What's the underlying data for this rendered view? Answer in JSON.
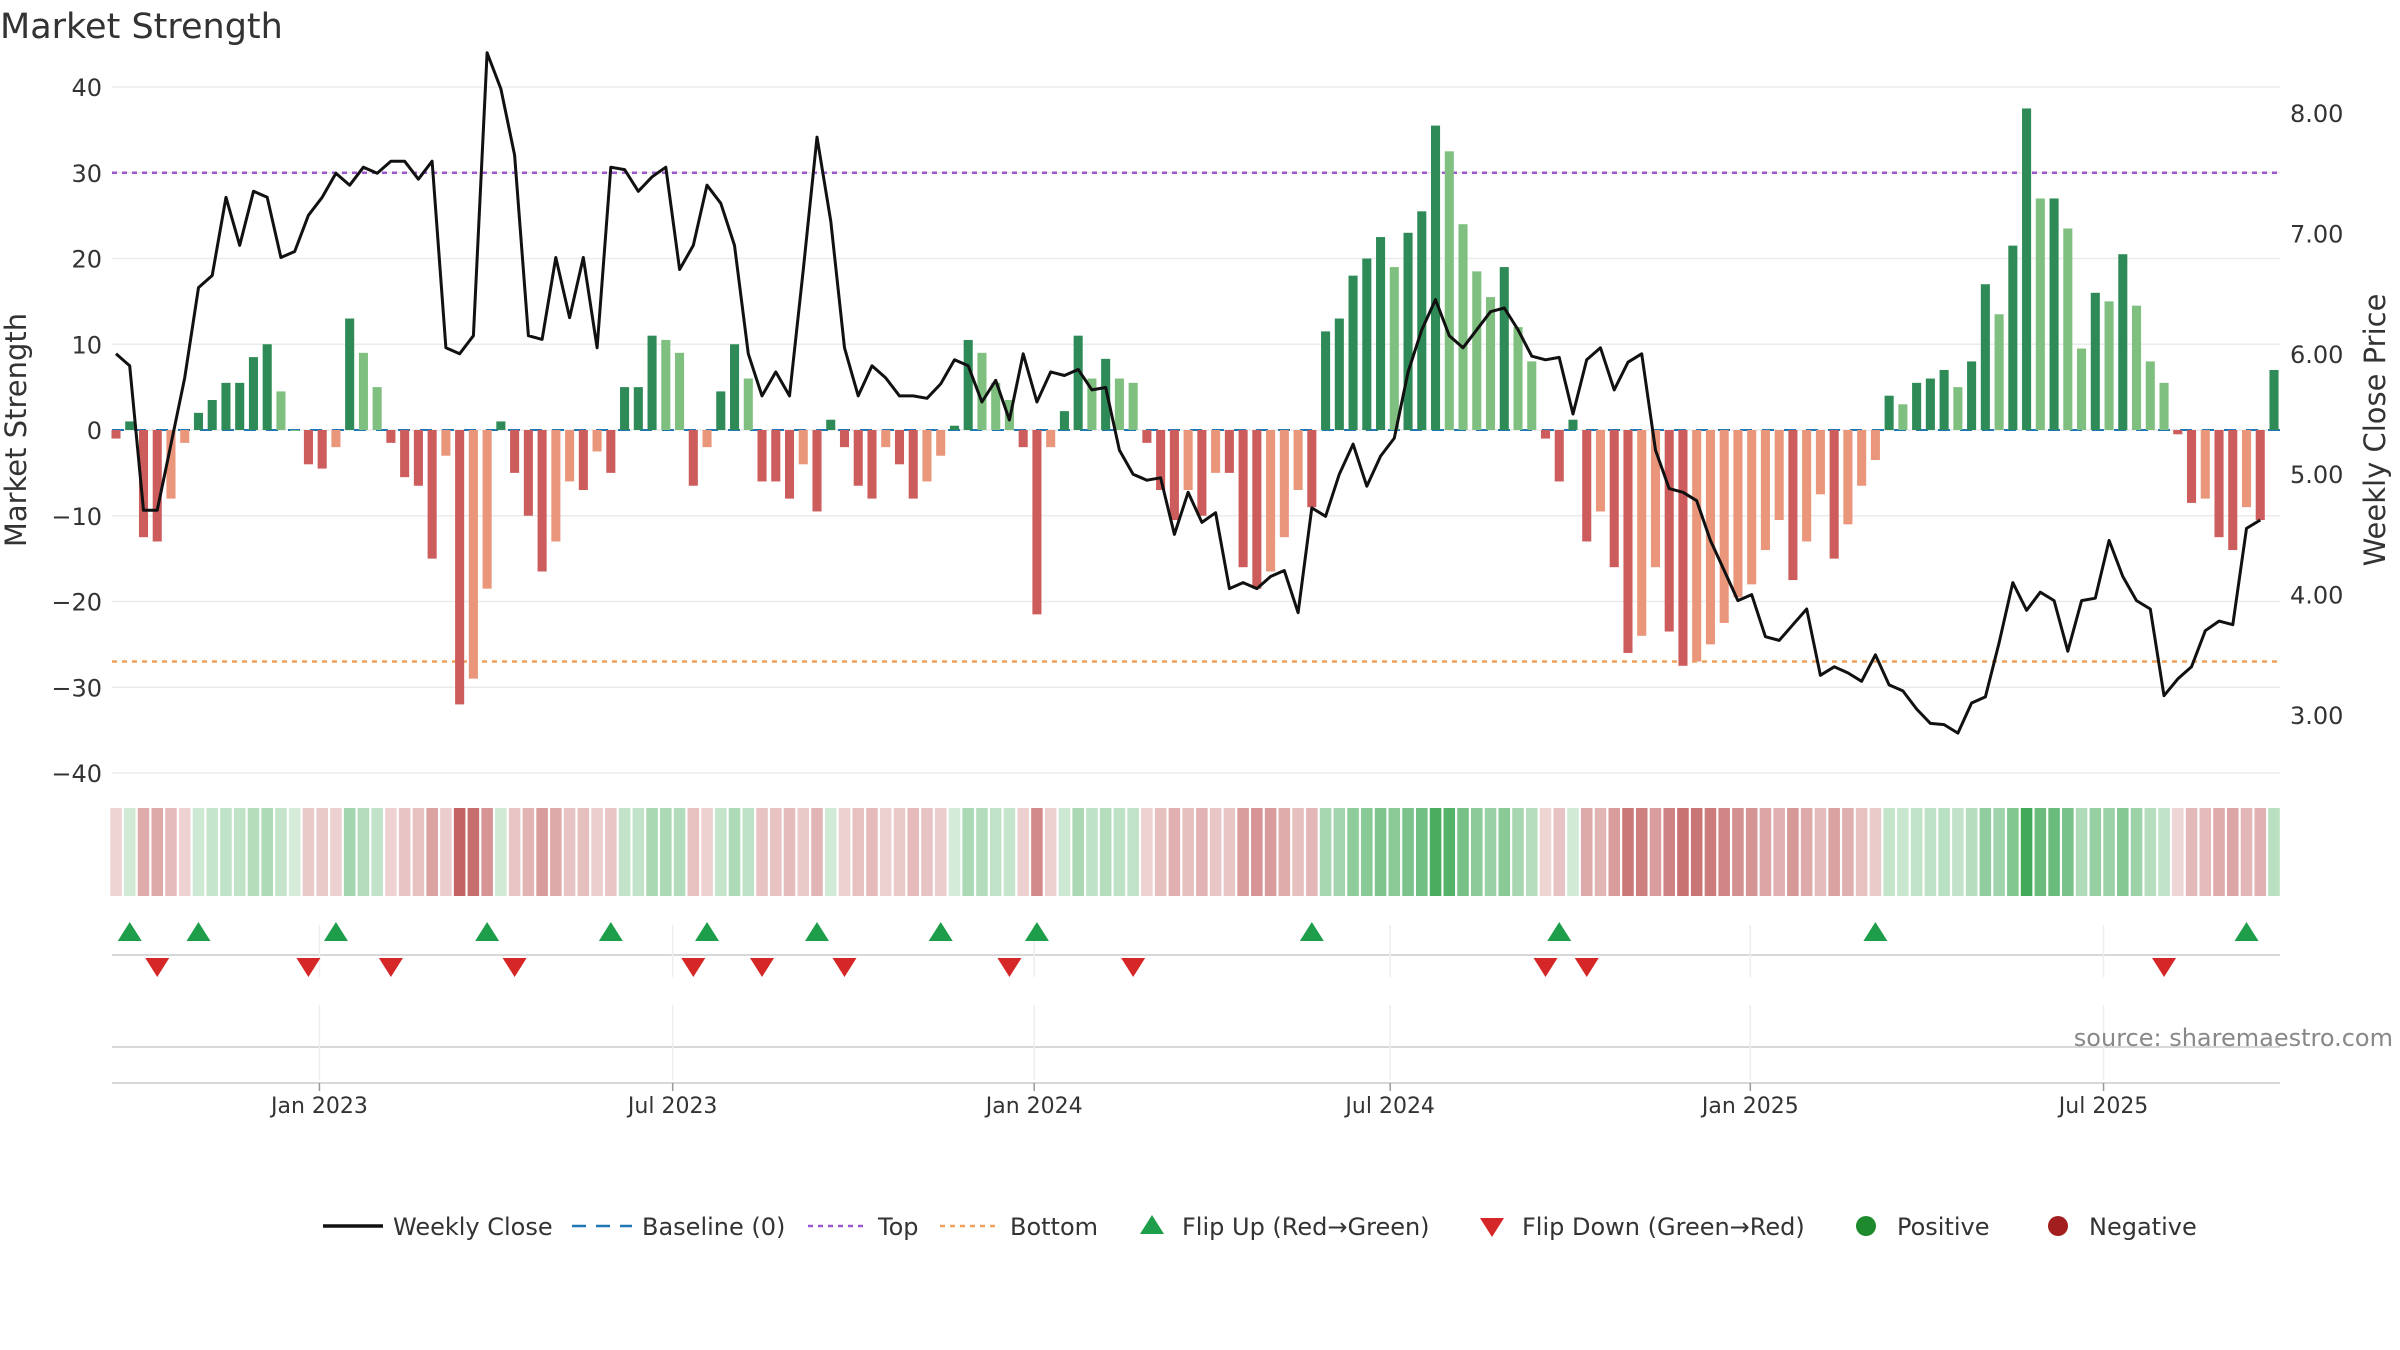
{
  "chart_data": {
    "type": "bar",
    "title": "Market Strength",
    "ylabel_left": "Market Strength",
    "ylabel_right": "Weekly Close Price",
    "source": "source: sharemaestro.com",
    "ylim_left": [
      -40,
      40
    ],
    "yticks_left": [
      "40",
      "30",
      "20",
      "10",
      "0",
      "−10",
      "−20",
      "−30",
      "−40"
    ],
    "ylim_right": [
      2.5,
      8.3
    ],
    "yticks_right": [
      "8.00",
      "7.00",
      "6.00",
      "5.00",
      "4.00",
      "3.00"
    ],
    "xtick_labels": [
      "Jan 2023",
      "Jul 2023",
      "Jan 2024",
      "Jul 2024",
      "Jan 2025",
      "Jul 2025"
    ],
    "xtick_weeks": [
      14.8,
      40.5,
      66.8,
      92.7,
      118.9,
      144.6
    ],
    "top_line": 30,
    "bottom_line": -27,
    "baseline": 0,
    "strength": [
      -1,
      1,
      -12.5,
      -13,
      -8,
      -1.5,
      2,
      3.5,
      5.5,
      5.5,
      8.5,
      10,
      4.5,
      0,
      -4,
      -4.5,
      -2,
      13,
      9,
      5,
      -1.5,
      -5.5,
      -6.5,
      -15,
      -3,
      -32,
      -29,
      -18.5,
      1,
      -5,
      -10,
      -16.5,
      -13,
      -6,
      -7,
      -2.5,
      -5,
      5,
      5,
      11,
      10.5,
      9,
      -6.5,
      -2,
      4.5,
      10,
      6,
      -6,
      -6,
      -8,
      -4,
      -9.5,
      1.2,
      -2,
      -6.5,
      -8,
      -2,
      -4,
      -8,
      -6,
      -3,
      0.5,
      10.5,
      9,
      5.5,
      3.5,
      -2,
      -21.5,
      -2,
      2.2,
      11,
      6,
      8.3,
      6,
      5.5,
      -1.5,
      -7,
      -10.5,
      -7,
      -10,
      -5,
      -5,
      -16,
      -18.5,
      -16.5,
      -12.5,
      -7,
      -9,
      11.5,
      13,
      18,
      20,
      22.5,
      19,
      23,
      25.5,
      35.5,
      32.5,
      24,
      18.5,
      15.5,
      19,
      12,
      8,
      -1,
      -6,
      1.2,
      -13,
      -9.5,
      -16,
      -26,
      -24,
      -16,
      -23.5,
      -27.5,
      -27,
      -25,
      -22.5,
      -19.5,
      -18,
      -14,
      -10.5,
      -17.5,
      -13,
      -7.5,
      -15,
      -11,
      -6.5,
      -3.5,
      4,
      3,
      5.5,
      6,
      7,
      5,
      8,
      17,
      13.5,
      21.5,
      37.5,
      27,
      27,
      23.5,
      9.5,
      16,
      15,
      20.5,
      14.5,
      8,
      5.5,
      -0.5,
      -8.5,
      -8,
      -12.5,
      -14,
      -9,
      -10.5,
      7
    ],
    "weekly_close": [
      6.0,
      5.9,
      4.7,
      4.7,
      5.25,
      5.8,
      6.55,
      6.65,
      7.3,
      6.9,
      7.35,
      7.3,
      6.8,
      6.85,
      7.15,
      7.3,
      7.5,
      7.4,
      7.55,
      7.5,
      7.6,
      7.6,
      7.45,
      7.6,
      6.05,
      6.0,
      6.15,
      8.5,
      8.2,
      7.65,
      6.15,
      6.12,
      6.8,
      6.3,
      6.8,
      6.05,
      7.55,
      7.53,
      7.35,
      7.47,
      7.55,
      6.7,
      6.9,
      7.4,
      7.25,
      6.9,
      6.0,
      5.65,
      5.85,
      5.65,
      6.7,
      7.8,
      7.1,
      6.05,
      5.65,
      5.9,
      5.8,
      5.65,
      5.65,
      5.63,
      5.75,
      5.95,
      5.9,
      5.6,
      5.78,
      5.45,
      6.0,
      5.6,
      5.85,
      5.82,
      5.87,
      5.7,
      5.72,
      5.2,
      5.0,
      4.95,
      4.97,
      4.5,
      4.85,
      4.6,
      4.68,
      4.05,
      4.1,
      4.05,
      4.15,
      4.2,
      3.85,
      4.72,
      4.65,
      5.0,
      5.25,
      4.9,
      5.15,
      5.3,
      5.85,
      6.2,
      6.45,
      6.15,
      6.05,
      6.2,
      6.35,
      6.38,
      6.2,
      5.98,
      5.95,
      5.97,
      5.5,
      5.95,
      6.05,
      5.7,
      5.93,
      6.0,
      5.2,
      4.88,
      4.85,
      4.78,
      4.45,
      4.2,
      3.95,
      4.0,
      3.65,
      3.62,
      3.75,
      3.88,
      3.33,
      3.4,
      3.35,
      3.28,
      3.5,
      3.25,
      3.2,
      3.05,
      2.93,
      2.92,
      2.85,
      3.1,
      3.15,
      3.6,
      4.1,
      3.87,
      4.02,
      3.95,
      3.53,
      3.95,
      3.97,
      4.45,
      4.15,
      3.95,
      3.88,
      3.16,
      3.3,
      3.4,
      3.7,
      3.78,
      3.75,
      4.55,
      4.62
    ],
    "flip_up_weeks": [
      1,
      6,
      16,
      27,
      36,
      43,
      51,
      60,
      67,
      87,
      105,
      128,
      155
    ],
    "flip_down_weeks": [
      3,
      14,
      20,
      29,
      42,
      47,
      53,
      65,
      74,
      104,
      107,
      149
    ],
    "legend": [
      {
        "label": "Weekly Close",
        "kind": "line-solid",
        "color": "#111111"
      },
      {
        "label": "Baseline (0)",
        "kind": "line-dash",
        "color": "#1f77b4"
      },
      {
        "label": "Top",
        "kind": "line-dot",
        "color": "#9b59d0"
      },
      {
        "label": "Bottom",
        "kind": "line-dot",
        "color": "#f0a05a"
      },
      {
        "label": "Flip Up (Red→Green)",
        "kind": "tri-up",
        "color": "#1e9e4a"
      },
      {
        "label": "Flip Down (Green→Red)",
        "kind": "tri-down",
        "color": "#d62728"
      },
      {
        "label": "Positive",
        "kind": "dot",
        "color": "#1e8a2e"
      },
      {
        "label": "Negative",
        "kind": "dot",
        "color": "#a31e1e"
      }
    ],
    "colors": {
      "top": "#9b59d0",
      "bottom": "#f0a05a",
      "baseline": "#1f77b4",
      "pos_strong": "#2e8b57",
      "pos_light": "#7fbf7f",
      "neg_strong": "#cd5c5c",
      "neg_light": "#e9967a",
      "up_marker": "#1e9e4a",
      "down_marker": "#d62728",
      "close_line": "#111111"
    }
  }
}
